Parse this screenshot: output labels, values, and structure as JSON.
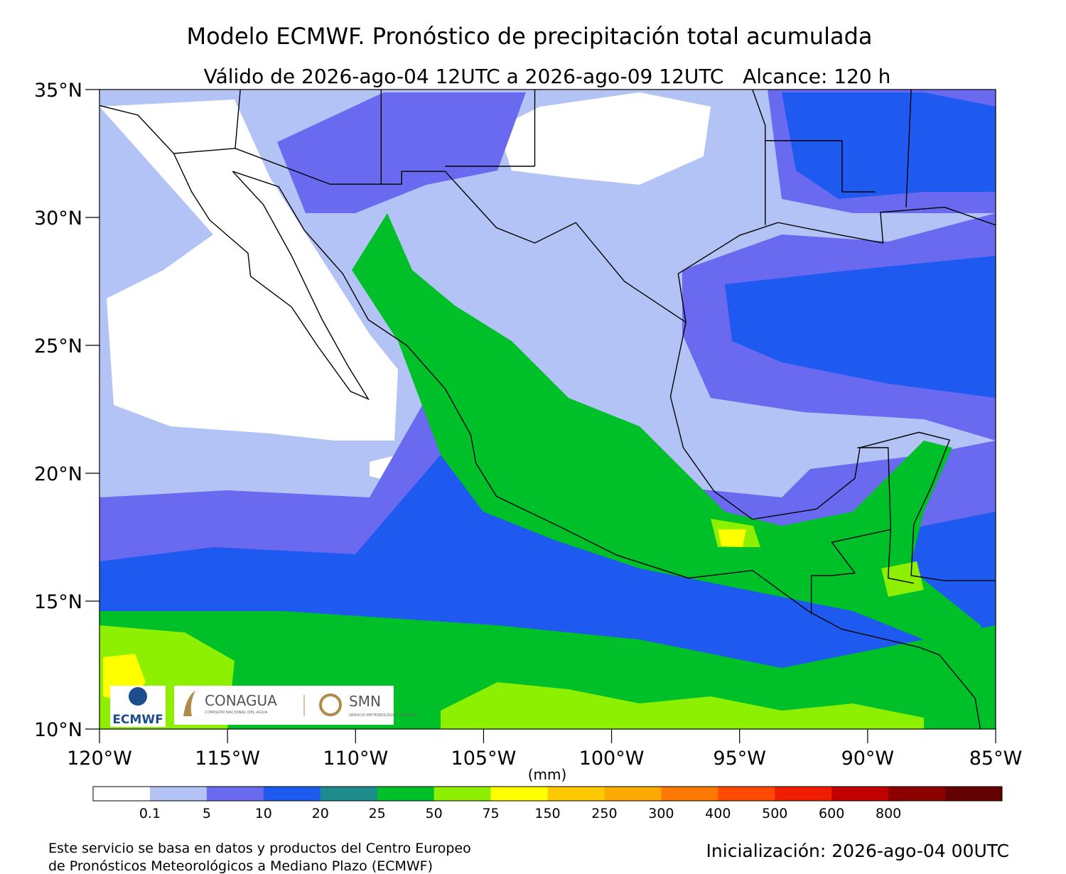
{
  "title": "Modelo ECMWF. Pronóstico de precipitación total acumulada",
  "subtitle": "Válido de 2026-ago-04 12UTC a 2026-ago-09 12UTC   Alcance: 120 h",
  "map": {
    "lat_labels": [
      "35°N",
      "30°N",
      "25°N",
      "20°N",
      "15°N",
      "10°N"
    ],
    "lon_labels": [
      "120°W",
      "115°W",
      "110°W",
      "105°W",
      "100°W",
      "95°W",
      "90°W",
      "85°W"
    ]
  },
  "colorbar": {
    "unit": "(mm)",
    "labels": [
      "0.1",
      "5",
      "10",
      "20",
      "25",
      "50",
      "75",
      "150",
      "250",
      "300",
      "400",
      "500",
      "600",
      "800"
    ],
    "colors": [
      "#ffffff",
      "#b4c3f5",
      "#6a6af0",
      "#1e5af0",
      "#1e8c8c",
      "#00c02a",
      "#8cf000",
      "#ffff00",
      "#ffc800",
      "#ffaa00",
      "#ff7800",
      "#ff4a00",
      "#f01e00",
      "#c00000",
      "#8c0000",
      "#640000"
    ]
  },
  "logos": {
    "ecmwf": "ECMWF",
    "conagua": "CONAGUA",
    "conagua_sub": "COMISIÓN NACIONAL DEL AGUA",
    "smn": "SMN",
    "smn_sub": "SERVICIO METEOROLÓGICO NACIONAL"
  },
  "footer": {
    "note": [
      "Este servicio se basa en datos y productos del Centro Europeo",
      "de Pronósticos Meteorológicos a Mediano Plazo (ECMWF)"
    ],
    "init": "Inicialización: 2026-ago-04 00UTC"
  }
}
